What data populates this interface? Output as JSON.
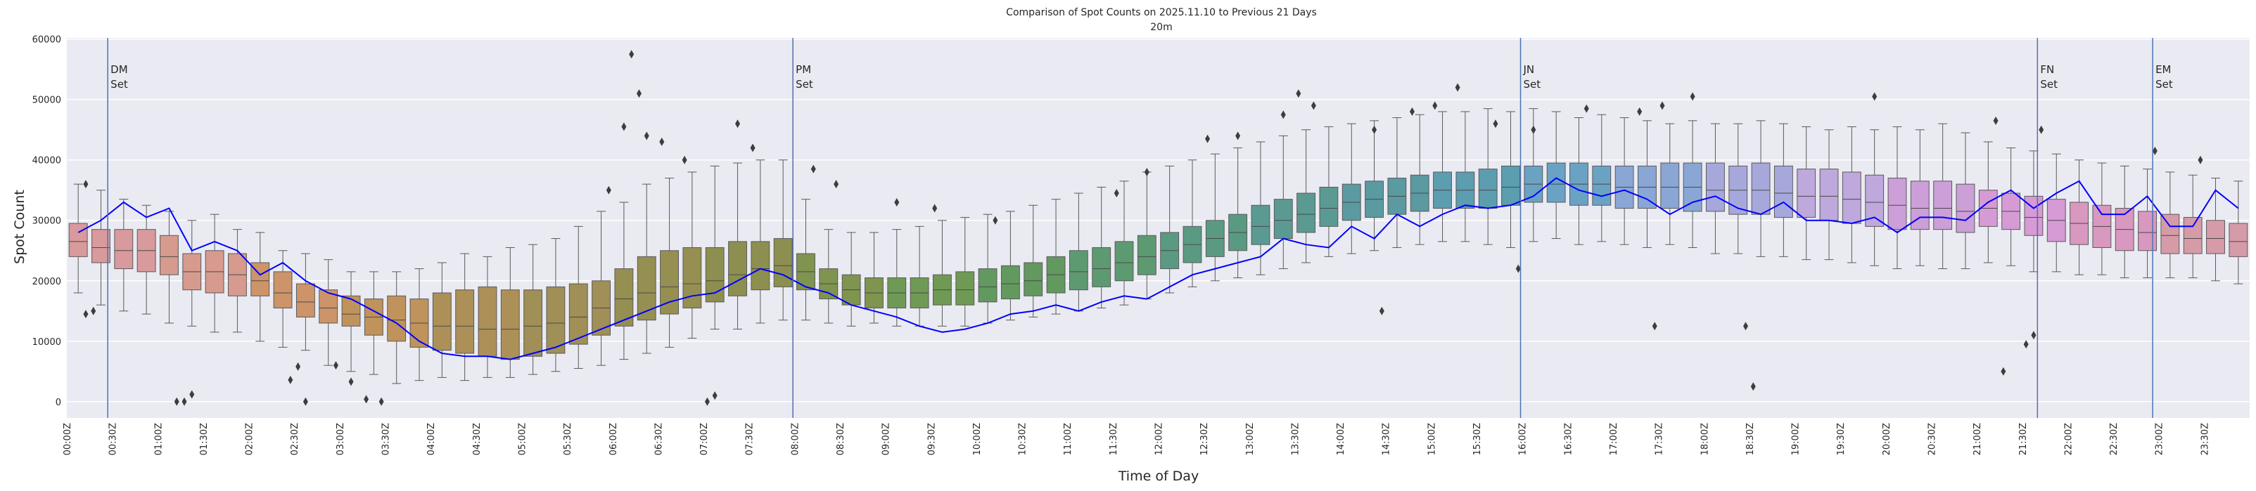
{
  "chart_data": {
    "type": "box",
    "title": "Comparison of Spot Counts on 2025.11.10 to Previous 21 Days",
    "subtitle": "20m",
    "xlabel": "Time of Day",
    "ylabel": "Spot Count",
    "ylim": [
      -2700,
      60200
    ],
    "yticks": [
      0,
      10000,
      20000,
      30000,
      40000,
      50000,
      60000
    ],
    "xticks": [
      "00:00Z",
      "00:30Z",
      "01:00Z",
      "01:30Z",
      "02:00Z",
      "02:30Z",
      "03:00Z",
      "03:30Z",
      "04:00Z",
      "04:30Z",
      "05:00Z",
      "05:30Z",
      "06:00Z",
      "06:30Z",
      "07:00Z",
      "07:30Z",
      "08:00Z",
      "08:30Z",
      "09:00Z",
      "09:30Z",
      "10:00Z",
      "10:30Z",
      "11:00Z",
      "11:30Z",
      "12:00Z",
      "12:30Z",
      "13:00Z",
      "13:30Z",
      "14:00Z",
      "14:30Z",
      "15:00Z",
      "15:30Z",
      "16:00Z",
      "16:30Z",
      "17:00Z",
      "17:30Z",
      "18:00Z",
      "18:30Z",
      "19:00Z",
      "19:30Z",
      "20:00Z",
      "20:30Z",
      "21:00Z",
      "21:30Z",
      "22:00Z",
      "22:30Z",
      "23:00Z",
      "23:30Z"
    ],
    "grid": true,
    "background": "#eaeaf2",
    "bin_minutes": 15,
    "box_fields": [
      "whisker_low",
      "q1",
      "median",
      "q3",
      "whisker_high"
    ],
    "hour_palette": [
      "#d89a9c",
      "#d69a8e",
      "#cc9468",
      "#c0935c",
      "#ac9058",
      "#a08f56",
      "#958f52",
      "#8c8f4f",
      "#7f944f",
      "#6f9a55",
      "#62995f",
      "#5d9a72",
      "#5a9a82",
      "#5a9a92",
      "#5a9aa0",
      "#5c9db0",
      "#6aa2c4",
      "#8aa6d4",
      "#a6a8dc",
      "#bea8dc",
      "#cc9fd8",
      "#d69ad4",
      "#d898c0",
      "#d69ba8"
    ],
    "boxes": [
      [
        18000,
        24000,
        26500,
        29500,
        36000
      ],
      [
        16000,
        23000,
        25500,
        28500,
        35000
      ],
      [
        15000,
        22000,
        25000,
        28500,
        33500
      ],
      [
        14500,
        21500,
        25000,
        28500,
        32500
      ],
      [
        13000,
        21000,
        24000,
        27500,
        31500
      ],
      [
        12500,
        18500,
        21500,
        24500,
        30000
      ],
      [
        11500,
        18000,
        21500,
        25000,
        31000
      ],
      [
        11500,
        17500,
        21000,
        24500,
        28500
      ],
      [
        10000,
        17500,
        20000,
        23000,
        28000
      ],
      [
        9000,
        15500,
        18000,
        21500,
        25000
      ],
      [
        8500,
        14000,
        16500,
        19500,
        24500
      ],
      [
        6000,
        13000,
        15500,
        18500,
        23500
      ],
      [
        5000,
        12500,
        14500,
        17500,
        21500
      ],
      [
        4500,
        11000,
        14000,
        17000,
        21500
      ],
      [
        3000,
        10000,
        13500,
        17500,
        21500
      ],
      [
        3500,
        9000,
        13000,
        17000,
        22000
      ],
      [
        4000,
        8500,
        12500,
        18000,
        23000
      ],
      [
        3500,
        8000,
        12500,
        18500,
        24500
      ],
      [
        4000,
        7500,
        12000,
        19000,
        24000
      ],
      [
        4000,
        7000,
        12000,
        18500,
        25500
      ],
      [
        4500,
        7500,
        12500,
        18500,
        26000
      ],
      [
        5000,
        8000,
        13000,
        19000,
        27000
      ],
      [
        5500,
        9500,
        14000,
        19500,
        29000
      ],
      [
        6000,
        11000,
        15500,
        20000,
        31500
      ],
      [
        7000,
        12500,
        17000,
        22000,
        33000
      ],
      [
        8000,
        13500,
        18000,
        24000,
        36000
      ],
      [
        9000,
        14500,
        19000,
        25000,
        37000
      ],
      [
        10500,
        15500,
        19500,
        25500,
        38000
      ],
      [
        12000,
        16500,
        20000,
        25500,
        39000
      ],
      [
        12000,
        17500,
        21000,
        26500,
        39500
      ],
      [
        13000,
        18500,
        22000,
        26500,
        40000
      ],
      [
        13500,
        19000,
        22500,
        27000,
        40000
      ],
      [
        13500,
        18500,
        21500,
        24500,
        33500
      ],
      [
        13000,
        17000,
        19500,
        22000,
        28500
      ],
      [
        12500,
        16000,
        18500,
        21000,
        28000
      ],
      [
        13000,
        15500,
        18000,
        20500,
        28000
      ],
      [
        12500,
        15500,
        18000,
        20500,
        28500
      ],
      [
        12500,
        15500,
        18000,
        20500,
        29000
      ],
      [
        12500,
        16000,
        18500,
        21000,
        30000
      ],
      [
        12500,
        16000,
        18500,
        21500,
        30500
      ],
      [
        13000,
        16500,
        19000,
        22000,
        31000
      ],
      [
        13500,
        17000,
        19500,
        22500,
        31500
      ],
      [
        14000,
        17500,
        20000,
        23000,
        32500
      ],
      [
        14500,
        18000,
        21000,
        24000,
        33500
      ],
      [
        15000,
        18500,
        21500,
        25000,
        34500
      ],
      [
        15500,
        19000,
        22000,
        25500,
        35500
      ],
      [
        16000,
        20000,
        23000,
        26500,
        36500
      ],
      [
        17000,
        21000,
        24000,
        27500,
        38000
      ],
      [
        18000,
        22000,
        25000,
        28000,
        39000
      ],
      [
        19000,
        23000,
        26000,
        29000,
        40000
      ],
      [
        20000,
        24000,
        27000,
        30000,
        41000
      ],
      [
        20500,
        25000,
        28000,
        31000,
        42000
      ],
      [
        21000,
        26000,
        29000,
        32500,
        43000
      ],
      [
        22000,
        27000,
        30000,
        33500,
        44000
      ],
      [
        23000,
        28000,
        31000,
        34500,
        45000
      ],
      [
        24000,
        29000,
        32000,
        35500,
        45500
      ],
      [
        24500,
        30000,
        33000,
        36000,
        46000
      ],
      [
        25000,
        30500,
        33500,
        36500,
        46500
      ],
      [
        25500,
        31000,
        34000,
        37000,
        47000
      ],
      [
        26000,
        31500,
        34500,
        37500,
        47500
      ],
      [
        26500,
        32000,
        35000,
        38000,
        48000
      ],
      [
        26500,
        32000,
        35000,
        38000,
        48000
      ],
      [
        26000,
        32000,
        35000,
        38500,
        48500
      ],
      [
        25500,
        32500,
        35500,
        39000,
        48000
      ],
      [
        26500,
        33000,
        36000,
        39000,
        48500
      ],
      [
        27000,
        33000,
        36000,
        39500,
        48000
      ],
      [
        26000,
        32500,
        36000,
        39500,
        47000
      ],
      [
        26500,
        32500,
        36000,
        39000,
        47500
      ],
      [
        26000,
        32000,
        35500,
        39000,
        47000
      ],
      [
        25500,
        32000,
        35500,
        39000,
        46500
      ],
      [
        26000,
        32000,
        35500,
        39500,
        46000
      ],
      [
        25500,
        31500,
        35500,
        39500,
        46500
      ],
      [
        24500,
        31500,
        35000,
        39500,
        46000
      ],
      [
        24500,
        31000,
        35000,
        39000,
        46000
      ],
      [
        24000,
        31000,
        35000,
        39500,
        46500
      ],
      [
        24000,
        30500,
        34500,
        39000,
        46000
      ],
      [
        23500,
        30500,
        34000,
        38500,
        45500
      ],
      [
        23500,
        30000,
        34000,
        38500,
        45000
      ],
      [
        23000,
        29500,
        33500,
        38000,
        45500
      ],
      [
        22500,
        29000,
        33000,
        37500,
        45000
      ],
      [
        22000,
        28500,
        32500,
        37000,
        45500
      ],
      [
        22500,
        28500,
        32000,
        36500,
        45000
      ],
      [
        22000,
        28500,
        32000,
        36500,
        46000
      ],
      [
        22000,
        28000,
        31500,
        36000,
        44500
      ],
      [
        23000,
        29000,
        32000,
        35000,
        43000
      ],
      [
        22500,
        28500,
        31500,
        34500,
        42000
      ],
      [
        21500,
        27500,
        30500,
        34000,
        41500
      ],
      [
        21500,
        26500,
        30000,
        33500,
        41000
      ],
      [
        21000,
        26000,
        29500,
        33000,
        40000
      ],
      [
        21000,
        25500,
        29000,
        32500,
        39500
      ],
      [
        20500,
        25000,
        28500,
        32000,
        39000
      ],
      [
        20500,
        25000,
        28000,
        31500,
        38500
      ],
      [
        20500,
        24500,
        27500,
        31000,
        38000
      ],
      [
        20500,
        24500,
        27000,
        30500,
        37500
      ],
      [
        20000,
        24500,
        27000,
        30000,
        37000
      ],
      [
        19500,
        24000,
        26500,
        29500,
        36500
      ]
    ],
    "outliers": [
      [
        "00:10",
        36000
      ],
      [
        "00:10",
        14500
      ],
      [
        "00:15",
        15000
      ],
      [
        "01:10",
        0
      ],
      [
        "01:15",
        0
      ],
      [
        "01:20",
        1200
      ],
      [
        "02:25",
        3600
      ],
      [
        "02:30",
        5800
      ],
      [
        "02:35",
        0
      ],
      [
        "02:55",
        6000
      ],
      [
        "03:05",
        3300
      ],
      [
        "03:15",
        400
      ],
      [
        "03:25",
        0
      ],
      [
        "05:55",
        35000
      ],
      [
        "06:05",
        45500
      ],
      [
        "06:10",
        57500
      ],
      [
        "06:15",
        51000
      ],
      [
        "06:20",
        44000
      ],
      [
        "06:30",
        43000
      ],
      [
        "06:45",
        40000
      ],
      [
        "07:00",
        0
      ],
      [
        "07:05",
        1000
      ],
      [
        "07:20",
        46000
      ],
      [
        "07:30",
        42000
      ],
      [
        "08:10",
        38500
      ],
      [
        "08:25",
        36000
      ],
      [
        "09:05",
        33000
      ],
      [
        "09:30",
        32000
      ],
      [
        "10:10",
        30000
      ],
      [
        "11:30",
        34500
      ],
      [
        "11:50",
        38000
      ],
      [
        "12:30",
        43500
      ],
      [
        "12:50",
        44000
      ],
      [
        "13:20",
        47500
      ],
      [
        "13:30",
        51000
      ],
      [
        "13:40",
        49000
      ],
      [
        "14:20",
        45000
      ],
      [
        "14:25",
        15000
      ],
      [
        "14:45",
        48000
      ],
      [
        "15:00",
        49000
      ],
      [
        "15:15",
        52000
      ],
      [
        "15:40",
        46000
      ],
      [
        "15:55",
        22000
      ],
      [
        "16:05",
        45000
      ],
      [
        "16:40",
        48500
      ],
      [
        "17:15",
        48000
      ],
      [
        "17:25",
        12500
      ],
      [
        "17:30",
        49000
      ],
      [
        "17:50",
        50500
      ],
      [
        "18:25",
        12500
      ],
      [
        "18:30",
        2500
      ],
      [
        "19:50",
        50500
      ],
      [
        "21:10",
        46500
      ],
      [
        "21:15",
        5000
      ],
      [
        "21:30",
        9500
      ],
      [
        "21:35",
        11000
      ],
      [
        "21:40",
        45000
      ],
      [
        "22:55",
        41500
      ],
      [
        "23:25",
        40000
      ]
    ],
    "line": {
      "color": "#0000ff",
      "values": [
        28000,
        30000,
        33000,
        30500,
        32000,
        25000,
        26500,
        25000,
        21000,
        23000,
        20000,
        18000,
        17000,
        15000,
        13000,
        10000,
        8000,
        7500,
        7500,
        7000,
        8000,
        9000,
        10500,
        12000,
        13500,
        15000,
        16500,
        17500,
        18000,
        20000,
        22000,
        21000,
        19000,
        18000,
        16000,
        15000,
        14000,
        12500,
        11500,
        12000,
        13000,
        14500,
        15000,
        16000,
        15000,
        16500,
        17500,
        17000,
        19000,
        21000,
        22000,
        23000,
        24000,
        27000,
        26000,
        25500,
        29000,
        27000,
        31000,
        29000,
        31000,
        32500,
        32000,
        32500,
        34000,
        37000,
        35000,
        34000,
        35000,
        33500,
        31000,
        33000,
        34000,
        32000,
        31000,
        33000,
        30000,
        30000,
        29500,
        30500,
        28000,
        30500,
        30500,
        30000,
        33000,
        35000,
        32000,
        34500,
        36500,
        31000,
        31000,
        34000,
        29000,
        29000,
        35000,
        32000
      ]
    },
    "vlines": [
      {
        "time": "00:27",
        "label_1": "DM",
        "label_2": "Set"
      },
      {
        "time": "07:59",
        "label_1": "PM",
        "label_2": "Set"
      },
      {
        "time": "15:59",
        "label_1": "JN",
        "label_2": "Set"
      },
      {
        "time": "21:40",
        "label_1": "FN",
        "label_2": "Set"
      },
      {
        "time": "22:56",
        "label_1": "EM",
        "label_2": "Set"
      }
    ],
    "vline_color": "#4c72b0"
  }
}
